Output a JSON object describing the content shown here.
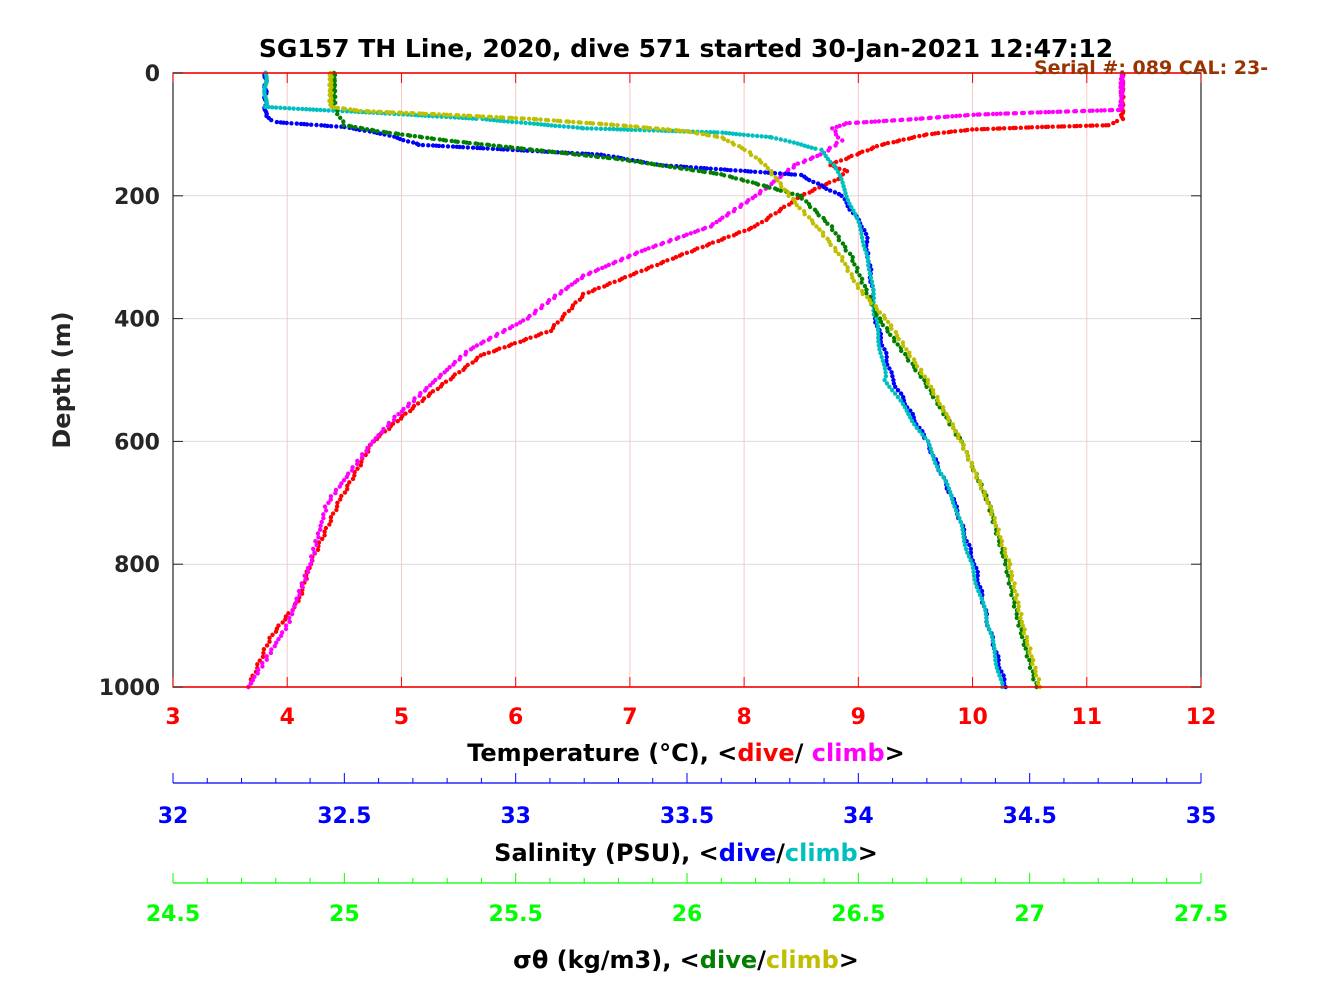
{
  "chart_data": {
    "type": "scatter",
    "title": "SG157 TH Line, 2020, dive 571 started 30-Jan-2021 12:47:12",
    "annotation": "Serial #: 089  CAL: 23-",
    "ylabel": "Depth (m)",
    "ylim": [
      0,
      1000
    ],
    "yticks": [
      0,
      200,
      400,
      600,
      800,
      1000
    ],
    "grid": true,
    "axes": [
      {
        "key": "temp",
        "label_parts": [
          "Temperature (°C), <",
          "dive",
          "/ ",
          "climb",
          ">"
        ],
        "xlim": [
          3,
          12
        ],
        "ticks": [
          3,
          4,
          5,
          6,
          7,
          8,
          9,
          10,
          11,
          12
        ],
        "color": "#ff0000",
        "dive_color": "#ff0000",
        "climb_color": "#ff00ff"
      },
      {
        "key": "sal",
        "label_parts": [
          "Salinity (PSU), <",
          "dive",
          "/",
          "climb",
          ">"
        ],
        "xlim": [
          32,
          35
        ],
        "ticks": [
          32,
          32.5,
          33,
          33.5,
          34,
          34.5,
          35
        ],
        "color": "#0000ff",
        "dive_color": "#0000ff",
        "climb_color": "#00bfbf"
      },
      {
        "key": "sigma",
        "label_parts": [
          "σθ (kg/m3), <",
          "dive",
          "/",
          "climb",
          ">"
        ],
        "xlim": [
          24.5,
          27.5
        ],
        "ticks": [
          24.5,
          25,
          25.5,
          26,
          26.5,
          27,
          27.5
        ],
        "color": "#00ff00",
        "dive_color": "#007f00",
        "climb_color": "#bfbf00"
      }
    ],
    "series": [
      {
        "name": "Temperature dive",
        "axis": "temp",
        "color": "#ff0000",
        "points": [
          [
            0,
            11.31
          ],
          [
            75,
            11.31
          ],
          [
            85,
            11.2
          ],
          [
            88,
            10.6
          ],
          [
            92,
            10.0
          ],
          [
            100,
            9.6
          ],
          [
            117,
            9.2
          ],
          [
            135,
            8.95
          ],
          [
            150,
            8.75
          ],
          [
            160,
            8.9
          ],
          [
            170,
            8.85
          ],
          [
            200,
            8.5
          ],
          [
            250,
            8.1
          ],
          [
            300,
            7.4
          ],
          [
            330,
            7.0
          ],
          [
            360,
            6.6
          ],
          [
            420,
            6.3
          ],
          [
            460,
            5.7
          ],
          [
            530,
            5.2
          ],
          [
            600,
            4.75
          ],
          [
            700,
            4.45
          ],
          [
            800,
            4.2
          ],
          [
            860,
            4.1
          ],
          [
            920,
            3.85
          ],
          [
            1000,
            3.66
          ]
        ]
      },
      {
        "name": "Temperature climb",
        "axis": "temp",
        "color": "#ff00ff",
        "points": [
          [
            0,
            11.31
          ],
          [
            60,
            11.3
          ],
          [
            64,
            10.6
          ],
          [
            68,
            10.0
          ],
          [
            75,
            9.5
          ],
          [
            82,
            8.9
          ],
          [
            90,
            8.78
          ],
          [
            100,
            8.8
          ],
          [
            110,
            8.85
          ],
          [
            130,
            8.7
          ],
          [
            150,
            8.45
          ],
          [
            200,
            8.1
          ],
          [
            250,
            7.7
          ],
          [
            290,
            7.1
          ],
          [
            330,
            6.6
          ],
          [
            370,
            6.3
          ],
          [
            400,
            6.1
          ],
          [
            450,
            5.6
          ],
          [
            500,
            5.3
          ],
          [
            560,
            4.95
          ],
          [
            600,
            4.75
          ],
          [
            700,
            4.35
          ],
          [
            800,
            4.2
          ],
          [
            900,
            4.0
          ],
          [
            1000,
            3.66
          ]
        ]
      },
      {
        "name": "Salinity dive",
        "axis": "sal",
        "color": "#0000ff",
        "points": [
          [
            0,
            32.27
          ],
          [
            70,
            32.27
          ],
          [
            80,
            32.3
          ],
          [
            88,
            32.5
          ],
          [
            100,
            32.62
          ],
          [
            117,
            32.72
          ],
          [
            133,
            33.25
          ],
          [
            150,
            33.42
          ],
          [
            166,
            33.83
          ],
          [
            200,
            33.95
          ],
          [
            256,
            34.02
          ],
          [
            300,
            34.03
          ],
          [
            400,
            34.05
          ],
          [
            500,
            34.1
          ],
          [
            600,
            34.2
          ],
          [
            700,
            34.28
          ],
          [
            800,
            34.34
          ],
          [
            900,
            34.38
          ],
          [
            1000,
            34.43
          ]
        ]
      },
      {
        "name": "Salinity climb",
        "axis": "sal",
        "color": "#00bfbf",
        "points": [
          [
            0,
            32.27
          ],
          [
            55,
            32.27
          ],
          [
            58,
            32.35
          ],
          [
            65,
            32.6
          ],
          [
            75,
            32.9
          ],
          [
            90,
            33.2
          ],
          [
            97,
            33.6
          ],
          [
            105,
            33.75
          ],
          [
            125,
            33.89
          ],
          [
            150,
            33.93
          ],
          [
            190,
            33.96
          ],
          [
            230,
            33.99
          ],
          [
            300,
            34.03
          ],
          [
            400,
            34.05
          ],
          [
            500,
            34.08
          ],
          [
            600,
            34.2
          ],
          [
            700,
            34.28
          ],
          [
            800,
            34.33
          ],
          [
            900,
            34.38
          ],
          [
            1000,
            34.42
          ]
        ]
      },
      {
        "name": "Sigma-theta dive",
        "axis": "sigma",
        "color": "#007f00",
        "points": [
          [
            0,
            24.97
          ],
          [
            55,
            24.97
          ],
          [
            85,
            25.0
          ],
          [
            95,
            25.1
          ],
          [
            110,
            25.3
          ],
          [
            125,
            25.55
          ],
          [
            140,
            25.8
          ],
          [
            150,
            25.92
          ],
          [
            165,
            26.1
          ],
          [
            180,
            26.2
          ],
          [
            200,
            26.33
          ],
          [
            250,
            26.42
          ],
          [
            300,
            26.48
          ],
          [
            400,
            26.56
          ],
          [
            500,
            26.69
          ],
          [
            600,
            26.8
          ],
          [
            700,
            26.88
          ],
          [
            800,
            26.93
          ],
          [
            900,
            26.97
          ],
          [
            1000,
            27.02
          ]
        ]
      },
      {
        "name": "Sigma-theta climb",
        "axis": "sigma",
        "color": "#bfbf00",
        "points": [
          [
            0,
            24.96
          ],
          [
            55,
            24.96
          ],
          [
            62,
            25.05
          ],
          [
            68,
            25.3
          ],
          [
            75,
            25.55
          ],
          [
            85,
            25.8
          ],
          [
            95,
            26.0
          ],
          [
            105,
            26.1
          ],
          [
            125,
            26.17
          ],
          [
            150,
            26.23
          ],
          [
            180,
            26.27
          ],
          [
            220,
            26.33
          ],
          [
            250,
            26.38
          ],
          [
            300,
            26.45
          ],
          [
            350,
            26.5
          ],
          [
            400,
            26.58
          ],
          [
            500,
            26.7
          ],
          [
            600,
            26.8
          ],
          [
            700,
            26.88
          ],
          [
            800,
            26.94
          ],
          [
            900,
            26.98
          ],
          [
            1000,
            27.03
          ]
        ]
      }
    ]
  }
}
